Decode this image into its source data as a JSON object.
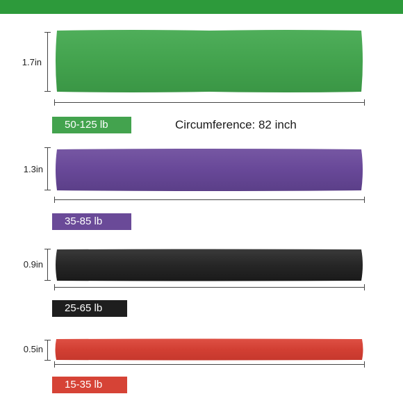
{
  "bands": [
    {
      "height": "1.7in",
      "resistance": "50-125 lb",
      "color": "#43a34e",
      "shade": "#35903f"
    },
    {
      "height": "1.3in",
      "resistance": "35-85 lb",
      "color": "#6a4a98",
      "shade": "#553a80"
    },
    {
      "height": "0.9in",
      "resistance": "25-65 lb",
      "color": "#2a2a2a",
      "shade": "#141414"
    },
    {
      "height": "0.5in",
      "resistance": "15-35 lb",
      "color": "#d64336",
      "shade": "#b8332a"
    }
  ],
  "circumference": "Circumference: 82 inch",
  "colors": {
    "top_bar": "#2d9a3b"
  }
}
